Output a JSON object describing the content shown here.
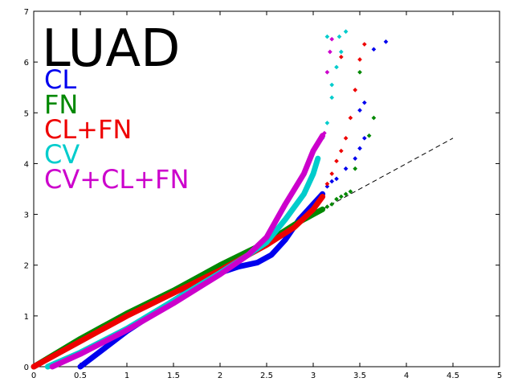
{
  "chart_data": {
    "type": "scatter",
    "title": "LUAD",
    "xlabel": "",
    "ylabel": "",
    "xlim": [
      0,
      5
    ],
    "ylim": [
      0,
      7
    ],
    "x_ticks": [
      "0",
      "0.5",
      "1",
      "1.5",
      "2",
      "2.5",
      "3",
      "3.5",
      "4",
      "4.5",
      "5"
    ],
    "y_ticks": [
      "0",
      "1",
      "2",
      "3",
      "4",
      "5",
      "6",
      "7"
    ],
    "grid": false,
    "legend_position": "top-left",
    "reference_line": {
      "style": "dashed",
      "color": "#000000",
      "x": [
        0,
        4.5
      ],
      "y": [
        0,
        4.5
      ]
    },
    "series": [
      {
        "name": "CL",
        "color": "#0000ee",
        "curve": [
          [
            0.5,
            0
          ],
          [
            1.0,
            0.7
          ],
          [
            1.5,
            1.3
          ],
          [
            1.8,
            1.65
          ],
          [
            2.0,
            1.85
          ],
          [
            2.2,
            1.97
          ],
          [
            2.4,
            2.05
          ],
          [
            2.55,
            2.2
          ],
          [
            2.7,
            2.5
          ],
          [
            2.85,
            2.9
          ],
          [
            3.0,
            3.2
          ],
          [
            3.1,
            3.4
          ]
        ],
        "points": [
          [
            3.15,
            3.55
          ],
          [
            3.2,
            3.65
          ],
          [
            3.25,
            3.7
          ],
          [
            3.35,
            3.9
          ],
          [
            3.45,
            4.1
          ],
          [
            3.5,
            4.3
          ],
          [
            3.55,
            4.5
          ],
          [
            3.5,
            5.05
          ],
          [
            3.55,
            5.2
          ],
          [
            3.65,
            6.25
          ],
          [
            3.78,
            6.4
          ]
        ]
      },
      {
        "name": "FN",
        "color": "#008800",
        "curve": [
          [
            0.0,
            0.0
          ],
          [
            0.5,
            0.55
          ],
          [
            1.0,
            1.05
          ],
          [
            1.5,
            1.5
          ],
          [
            2.0,
            2.0
          ],
          [
            2.5,
            2.45
          ],
          [
            2.8,
            2.8
          ],
          [
            3.0,
            3.0
          ],
          [
            3.1,
            3.1
          ]
        ],
        "points": [
          [
            3.15,
            3.15
          ],
          [
            3.2,
            3.2
          ],
          [
            3.25,
            3.3
          ],
          [
            3.3,
            3.35
          ],
          [
            3.35,
            3.4
          ],
          [
            3.4,
            3.45
          ],
          [
            3.45,
            3.9
          ],
          [
            3.6,
            4.55
          ],
          [
            3.65,
            4.9
          ],
          [
            3.5,
            5.8
          ]
        ]
      },
      {
        "name": "CL+FN",
        "color": "#ee0000",
        "curve": [
          [
            0.0,
            0.0
          ],
          [
            0.5,
            0.5
          ],
          [
            1.0,
            1.0
          ],
          [
            1.5,
            1.45
          ],
          [
            2.0,
            1.9
          ],
          [
            2.5,
            2.4
          ],
          [
            2.8,
            2.75
          ],
          [
            3.0,
            3.1
          ],
          [
            3.1,
            3.35
          ]
        ],
        "points": [
          [
            3.15,
            3.6
          ],
          [
            3.2,
            3.8
          ],
          [
            3.25,
            4.05
          ],
          [
            3.3,
            4.25
          ],
          [
            3.35,
            4.5
          ],
          [
            3.4,
            4.9
          ],
          [
            3.45,
            5.45
          ],
          [
            3.5,
            6.05
          ],
          [
            3.55,
            6.35
          ],
          [
            3.3,
            6.1
          ]
        ]
      },
      {
        "name": "CV",
        "color": "#00cccc",
        "curve": [
          [
            0.15,
            0.0
          ],
          [
            0.5,
            0.28
          ],
          [
            1.0,
            0.75
          ],
          [
            1.5,
            1.3
          ],
          [
            2.0,
            1.85
          ],
          [
            2.3,
            2.2
          ],
          [
            2.5,
            2.45
          ],
          [
            2.7,
            2.9
          ],
          [
            2.9,
            3.4
          ],
          [
            3.0,
            3.8
          ],
          [
            3.05,
            4.1
          ]
        ],
        "points": [
          [
            3.1,
            4.5
          ],
          [
            3.15,
            4.8
          ],
          [
            3.2,
            5.3
          ],
          [
            3.2,
            5.55
          ],
          [
            3.25,
            5.9
          ],
          [
            3.3,
            6.2
          ],
          [
            3.28,
            6.5
          ],
          [
            3.35,
            6.6
          ],
          [
            3.15,
            6.5
          ]
        ]
      },
      {
        "name": "CV+CL+FN",
        "color": "#cc00cc",
        "curve": [
          [
            0.2,
            0.0
          ],
          [
            0.5,
            0.25
          ],
          [
            1.0,
            0.72
          ],
          [
            1.5,
            1.25
          ],
          [
            2.0,
            1.82
          ],
          [
            2.3,
            2.2
          ],
          [
            2.5,
            2.55
          ],
          [
            2.7,
            3.2
          ],
          [
            2.9,
            3.8
          ],
          [
            3.0,
            4.25
          ],
          [
            3.1,
            4.55
          ]
        ],
        "points": [
          [
            3.12,
            4.6
          ],
          [
            3.18,
            6.2
          ],
          [
            3.2,
            6.45
          ],
          [
            3.15,
            5.8
          ]
        ]
      }
    ]
  }
}
